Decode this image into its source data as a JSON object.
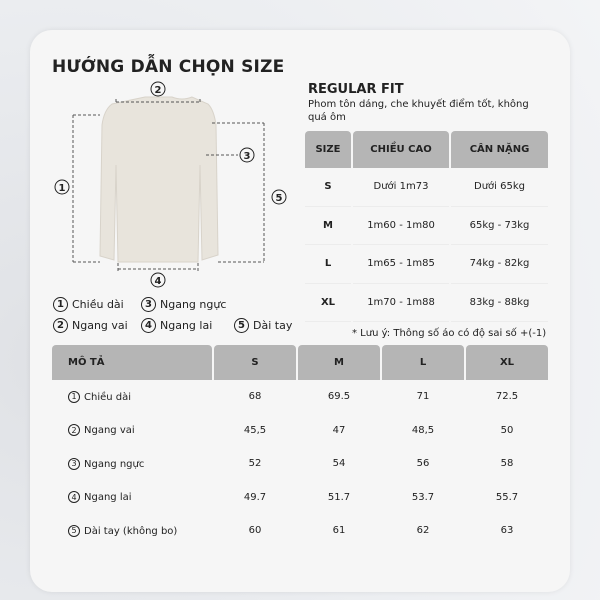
{
  "title": "HƯỚNG DẪN CHỌN SIZE",
  "fit": {
    "name": "REGULAR FIT",
    "description": "Phom tôn dáng, che khuyết điểm tốt, không quá ôm"
  },
  "size_table": {
    "headers": [
      "SIZE",
      "CHIỀU CAO",
      "CÂN NẶNG"
    ],
    "rows": [
      [
        "S",
        "Dưới 1m73",
        "Dưới 65kg"
      ],
      [
        "M",
        "1m60 - 1m80",
        "65kg - 73kg"
      ],
      [
        "L",
        "1m65 - 1m85",
        "74kg - 82kg"
      ],
      [
        "XL",
        "1m70 - 1m88",
        "83kg - 88kg"
      ]
    ]
  },
  "note": "* Lưu ý: Thông số áo có độ sai số  +(-1)",
  "diagram": {
    "markers": [
      "1",
      "2",
      "3",
      "4",
      "5"
    ],
    "garment_color": "#e8e4dc"
  },
  "legend": [
    {
      "n": "1",
      "label": "Chiều dài"
    },
    {
      "n": "3",
      "label": "Ngang ngực"
    },
    {
      "n": "2",
      "label": "Ngang vai"
    },
    {
      "n": "4",
      "label": "Ngang lai"
    },
    {
      "n": "5",
      "label": "Dài tay"
    }
  ],
  "measure_table": {
    "headers": [
      "MÔ TẢ",
      "S",
      "M",
      "L",
      "XL"
    ],
    "rows": [
      {
        "n": "1",
        "label": "Chiều dài",
        "values": [
          "68",
          "69.5",
          "71",
          "72.5"
        ]
      },
      {
        "n": "2",
        "label": "Ngang vai",
        "values": [
          "45,5",
          "47",
          "48,5",
          "50"
        ]
      },
      {
        "n": "3",
        "label": "Ngang ngực",
        "values": [
          "52",
          "54",
          "56",
          "58"
        ]
      },
      {
        "n": "4",
        "label": "Ngang lai",
        "values": [
          "49.7",
          "51.7",
          "53.7",
          "55.7"
        ]
      },
      {
        "n": "5",
        "label": "Dài tay (không bo)",
        "values": [
          "60",
          "61",
          "62",
          "63"
        ]
      }
    ]
  }
}
